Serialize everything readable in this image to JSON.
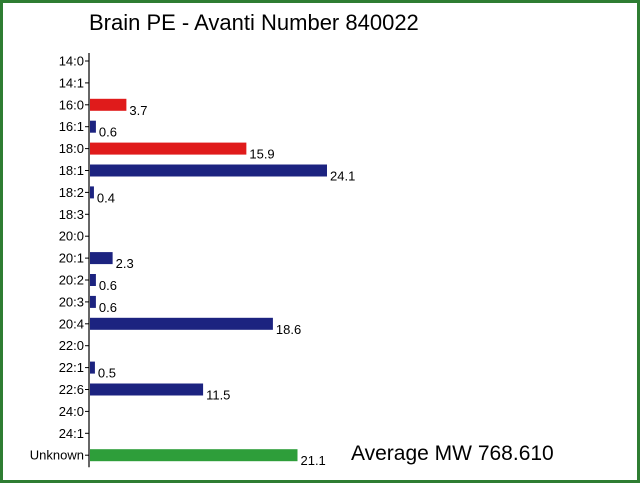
{
  "chart_data": {
    "type": "bar",
    "orientation": "horizontal",
    "title": "Brain PE - Avanti Number 840022",
    "categories": [
      "14:0",
      "14:1",
      "16:0",
      "16:1",
      "18:0",
      "18:1",
      "18:2",
      "18:3",
      "20:0",
      "20:1",
      "20:2",
      "20:3",
      "20:4",
      "22:0",
      "22:1",
      "22:6",
      "24:0",
      "24:1",
      "Unknown"
    ],
    "values": [
      null,
      null,
      3.7,
      0.6,
      15.9,
      24.1,
      0.4,
      null,
      null,
      2.3,
      0.6,
      0.6,
      18.6,
      null,
      0.5,
      11.5,
      null,
      null,
      21.1
    ],
    "value_labels": [
      "",
      "",
      "3.7",
      "0.6",
      "15.9",
      "24.1",
      "0.4",
      "",
      "",
      "2.3",
      "0.6",
      "0.6",
      "18.6",
      "",
      "0.5",
      "11.5",
      "",
      "",
      "21.1"
    ],
    "bar_colors": [
      "#1c2380",
      "#1c2380",
      "#e01b1b",
      "#1c2380",
      "#e01b1b",
      "#1c2380",
      "#1c2380",
      "#1c2380",
      "#1c2380",
      "#1c2380",
      "#1c2380",
      "#1c2380",
      "#1c2380",
      "#1c2380",
      "#1c2380",
      "#1c2380",
      "#1c2380",
      "#1c2380",
      "#2e9e3a"
    ],
    "xlim": [
      0,
      24.1
    ],
    "annotation": "Average MW 768.610",
    "grid": false,
    "legend": "none"
  },
  "colors": {
    "border": "#2e7d32",
    "axis": "#000000"
  }
}
